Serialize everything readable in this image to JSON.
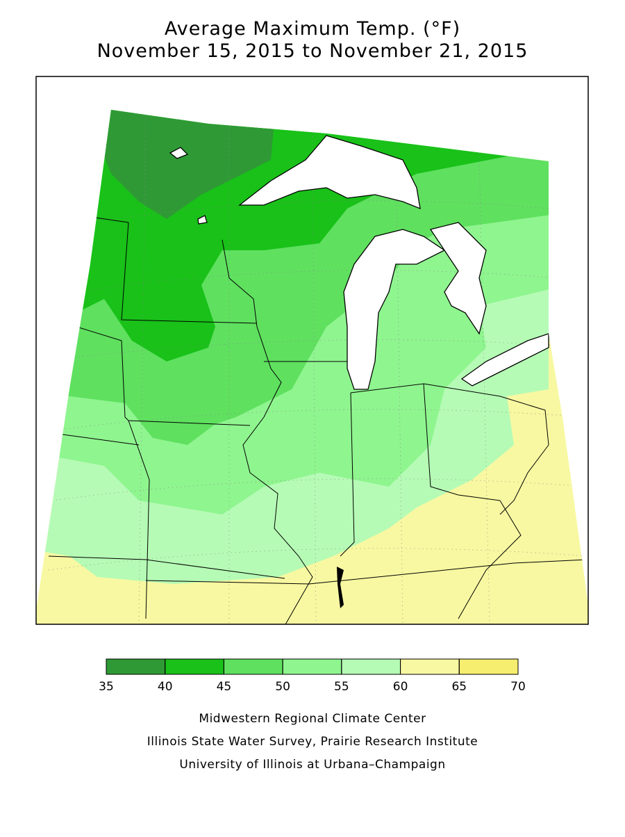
{
  "header": {
    "title": "Average Maximum Temp. (°F)",
    "subtitle": "November 15, 2015 to November 21, 2015"
  },
  "legend": {
    "bins": [
      35,
      40,
      45,
      50,
      55,
      60,
      65,
      70
    ],
    "colors": [
      "#2f9a35",
      "#19c119",
      "#5fe05f",
      "#8ff58f",
      "#b5fbb5",
      "#f8f8a2",
      "#f6ee6e"
    ]
  },
  "credits": [
    "Midwestern Regional Climate Center",
    "Illinois State Water Survey, Prairie Research Institute",
    "University of Illinois at Urbana–Champaign"
  ]
}
